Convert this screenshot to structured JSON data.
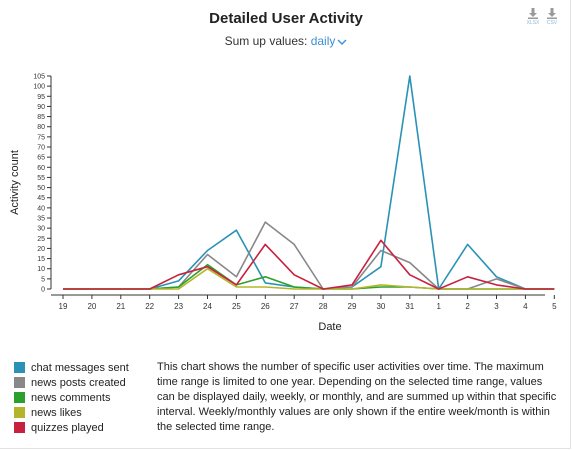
{
  "title": "Detailed User Activity",
  "sumup": {
    "label": "Sum up values:",
    "selected": "daily"
  },
  "downloads": [
    {
      "label": "XLSX",
      "icon": "download-icon"
    },
    {
      "label": "CSV",
      "icon": "download-icon"
    }
  ],
  "description": "This chart shows the number of specific user activities over time. The maximum time range is limited to one year. Depending on the selected time range, values can be displayed daily, weekly, or monthly, and are summed up within that specific interval. Weekly/monthly values are only shown if the entire week/month is within the selected time range.",
  "chart_data": {
    "type": "line",
    "xlabel": "Date",
    "ylabel": "Activity count",
    "ylim": [
      0,
      105
    ],
    "ytick_step": 5,
    "categories": [
      "19",
      "20",
      "21",
      "22",
      "23",
      "24",
      "25",
      "26",
      "27",
      "28",
      "29",
      "30",
      "31",
      "1",
      "2",
      "3",
      "4",
      "5"
    ],
    "grid": false,
    "legend_position": "bottom-left",
    "series": [
      {
        "name": "chat messages sent",
        "color": "#2a93b5",
        "values": [
          0,
          0,
          0,
          0,
          4,
          19,
          29,
          3,
          1,
          0,
          1,
          11,
          105,
          0,
          22,
          6,
          0,
          0
        ]
      },
      {
        "name": "news posts created",
        "color": "#888888",
        "values": [
          0,
          0,
          0,
          0,
          1,
          17,
          6,
          33,
          22,
          0,
          1,
          19,
          13,
          0,
          0,
          5,
          0,
          0
        ]
      },
      {
        "name": "news comments",
        "color": "#2ca02c",
        "values": [
          0,
          0,
          0,
          0,
          1,
          12,
          2,
          6,
          1,
          0,
          0,
          1,
          1,
          0,
          0,
          0,
          0,
          0
        ]
      },
      {
        "name": "news likes",
        "color": "#b5b52c",
        "values": [
          0,
          0,
          0,
          0,
          0,
          10,
          1,
          1,
          0,
          0,
          0,
          2,
          1,
          0,
          0,
          0,
          0,
          0
        ]
      },
      {
        "name": "quizzes played",
        "color": "#c8213f",
        "values": [
          0,
          0,
          0,
          0,
          7,
          11,
          2,
          22,
          7,
          0,
          2,
          24,
          7,
          0,
          6,
          2,
          0,
          0
        ]
      }
    ]
  }
}
